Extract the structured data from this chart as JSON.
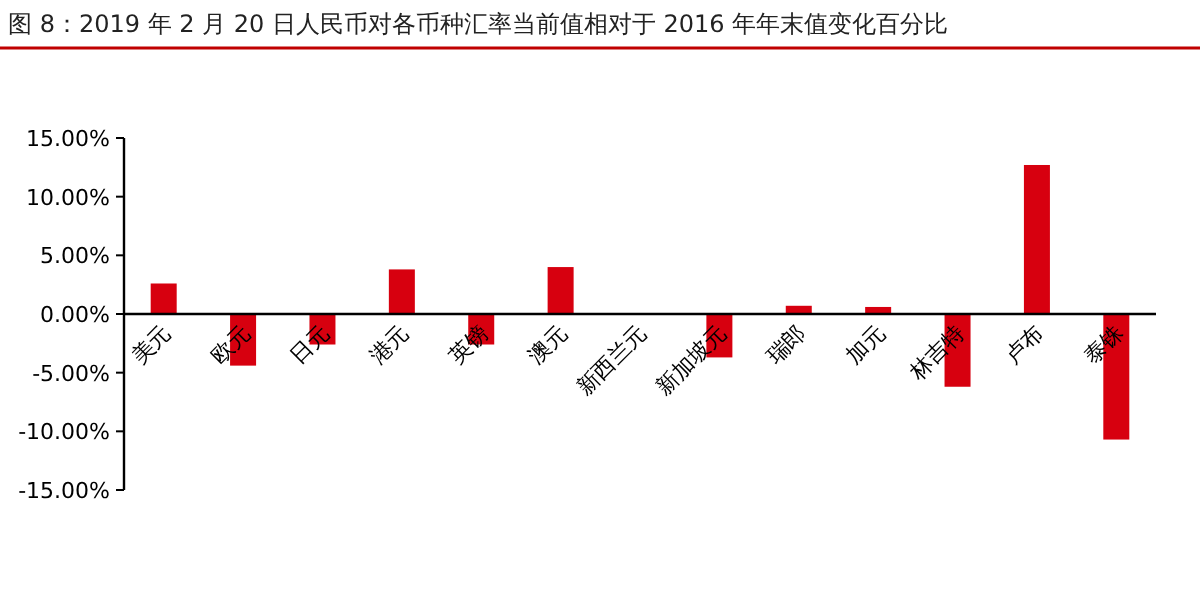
{
  "chart_data": {
    "type": "bar",
    "title": "图 8：2019 年 2 月 20 日人民币对各币种汇率当前值相对于 2016 年年末值变化百分比",
    "categories": [
      "美元",
      "欧元",
      "日元",
      "港元",
      "英镑",
      "澳元",
      "新西兰元",
      "新加坡元",
      "瑞郎",
      "加元",
      "林吉特",
      "卢布",
      "泰铢"
    ],
    "values": [
      2.6,
      -4.4,
      -2.6,
      3.8,
      -2.6,
      4.0,
      0,
      -3.7,
      0.7,
      0.6,
      -6.2,
      12.7,
      -10.7
    ],
    "color": "#d7000f",
    "ylim": [
      -15,
      15
    ],
    "yticks": [
      {
        "value": -15,
        "label": "-15.00%"
      },
      {
        "value": -10,
        "label": "-10.00%"
      },
      {
        "value": -5,
        "label": "-5.00%"
      },
      {
        "value": 0,
        "label": "0.00%"
      },
      {
        "value": 5,
        "label": "5.00%"
      },
      {
        "value": 10,
        "label": "10.00%"
      },
      {
        "value": 15,
        "label": "15.00%"
      }
    ],
    "grid": false
  }
}
